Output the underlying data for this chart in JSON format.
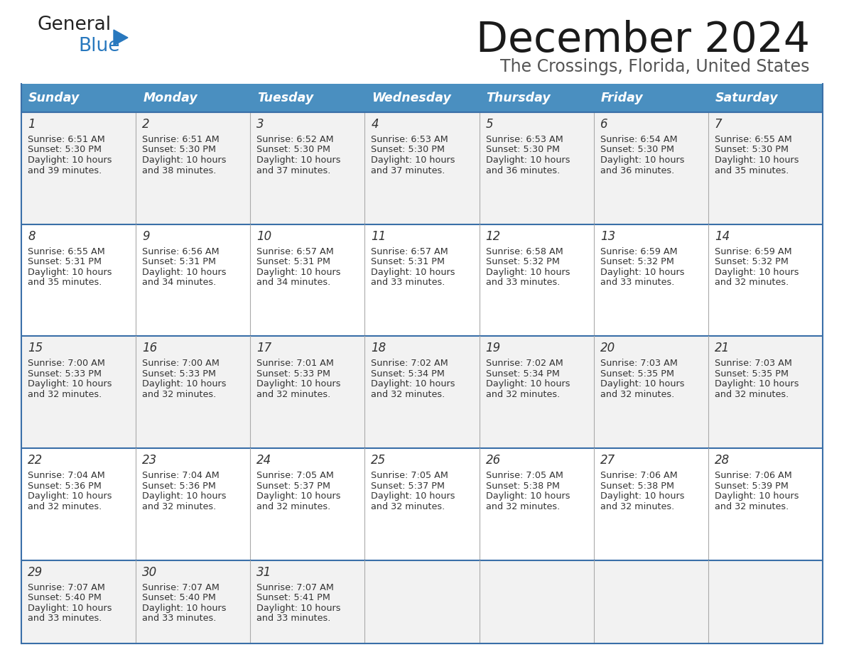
{
  "title": "December 2024",
  "subtitle": "The Crossings, Florida, United States",
  "header_bg_color": "#4a8fc0",
  "header_text_color": "#ffffff",
  "cell_bg_light": "#f2f2f2",
  "cell_bg_white": "#ffffff",
  "border_color": "#3a6fa8",
  "divider_color": "#aaaaaa",
  "text_color": "#333333",
  "day_headers": [
    "Sunday",
    "Monday",
    "Tuesday",
    "Wednesday",
    "Thursday",
    "Friday",
    "Saturday"
  ],
  "calendar": [
    [
      {
        "day": "1",
        "sunrise": "6:51 AM",
        "sunset": "5:30 PM",
        "daylight_mins": "39"
      },
      {
        "day": "2",
        "sunrise": "6:51 AM",
        "sunset": "5:30 PM",
        "daylight_mins": "38"
      },
      {
        "day": "3",
        "sunrise": "6:52 AM",
        "sunset": "5:30 PM",
        "daylight_mins": "37"
      },
      {
        "day": "4",
        "sunrise": "6:53 AM",
        "sunset": "5:30 PM",
        "daylight_mins": "37"
      },
      {
        "day": "5",
        "sunrise": "6:53 AM",
        "sunset": "5:30 PM",
        "daylight_mins": "36"
      },
      {
        "day": "6",
        "sunrise": "6:54 AM",
        "sunset": "5:30 PM",
        "daylight_mins": "36"
      },
      {
        "day": "7",
        "sunrise": "6:55 AM",
        "sunset": "5:30 PM",
        "daylight_mins": "35"
      }
    ],
    [
      {
        "day": "8",
        "sunrise": "6:55 AM",
        "sunset": "5:31 PM",
        "daylight_mins": "35"
      },
      {
        "day": "9",
        "sunrise": "6:56 AM",
        "sunset": "5:31 PM",
        "daylight_mins": "34"
      },
      {
        "day": "10",
        "sunrise": "6:57 AM",
        "sunset": "5:31 PM",
        "daylight_mins": "34"
      },
      {
        "day": "11",
        "sunrise": "6:57 AM",
        "sunset": "5:31 PM",
        "daylight_mins": "33"
      },
      {
        "day": "12",
        "sunrise": "6:58 AM",
        "sunset": "5:32 PM",
        "daylight_mins": "33"
      },
      {
        "day": "13",
        "sunrise": "6:59 AM",
        "sunset": "5:32 PM",
        "daylight_mins": "33"
      },
      {
        "day": "14",
        "sunrise": "6:59 AM",
        "sunset": "5:32 PM",
        "daylight_mins": "32"
      }
    ],
    [
      {
        "day": "15",
        "sunrise": "7:00 AM",
        "sunset": "5:33 PM",
        "daylight_mins": "32"
      },
      {
        "day": "16",
        "sunrise": "7:00 AM",
        "sunset": "5:33 PM",
        "daylight_mins": "32"
      },
      {
        "day": "17",
        "sunrise": "7:01 AM",
        "sunset": "5:33 PM",
        "daylight_mins": "32"
      },
      {
        "day": "18",
        "sunrise": "7:02 AM",
        "sunset": "5:34 PM",
        "daylight_mins": "32"
      },
      {
        "day": "19",
        "sunrise": "7:02 AM",
        "sunset": "5:34 PM",
        "daylight_mins": "32"
      },
      {
        "day": "20",
        "sunrise": "7:03 AM",
        "sunset": "5:35 PM",
        "daylight_mins": "32"
      },
      {
        "day": "21",
        "sunrise": "7:03 AM",
        "sunset": "5:35 PM",
        "daylight_mins": "32"
      }
    ],
    [
      {
        "day": "22",
        "sunrise": "7:04 AM",
        "sunset": "5:36 PM",
        "daylight_mins": "32"
      },
      {
        "day": "23",
        "sunrise": "7:04 AM",
        "sunset": "5:36 PM",
        "daylight_mins": "32"
      },
      {
        "day": "24",
        "sunrise": "7:05 AM",
        "sunset": "5:37 PM",
        "daylight_mins": "32"
      },
      {
        "day": "25",
        "sunrise": "7:05 AM",
        "sunset": "5:37 PM",
        "daylight_mins": "32"
      },
      {
        "day": "26",
        "sunrise": "7:05 AM",
        "sunset": "5:38 PM",
        "daylight_mins": "32"
      },
      {
        "day": "27",
        "sunrise": "7:06 AM",
        "sunset": "5:38 PM",
        "daylight_mins": "32"
      },
      {
        "day": "28",
        "sunrise": "7:06 AM",
        "sunset": "5:39 PM",
        "daylight_mins": "32"
      }
    ],
    [
      {
        "day": "29",
        "sunrise": "7:07 AM",
        "sunset": "5:40 PM",
        "daylight_mins": "33"
      },
      {
        "day": "30",
        "sunrise": "7:07 AM",
        "sunset": "5:40 PM",
        "daylight_mins": "33"
      },
      {
        "day": "31",
        "sunrise": "7:07 AM",
        "sunset": "5:41 PM",
        "daylight_mins": "33"
      },
      null,
      null,
      null,
      null
    ]
  ],
  "logo_general_color": "#222222",
  "logo_blue_color": "#2878be",
  "logo_triangle_color": "#2878be",
  "title_color": "#1a1a1a",
  "subtitle_color": "#555555"
}
